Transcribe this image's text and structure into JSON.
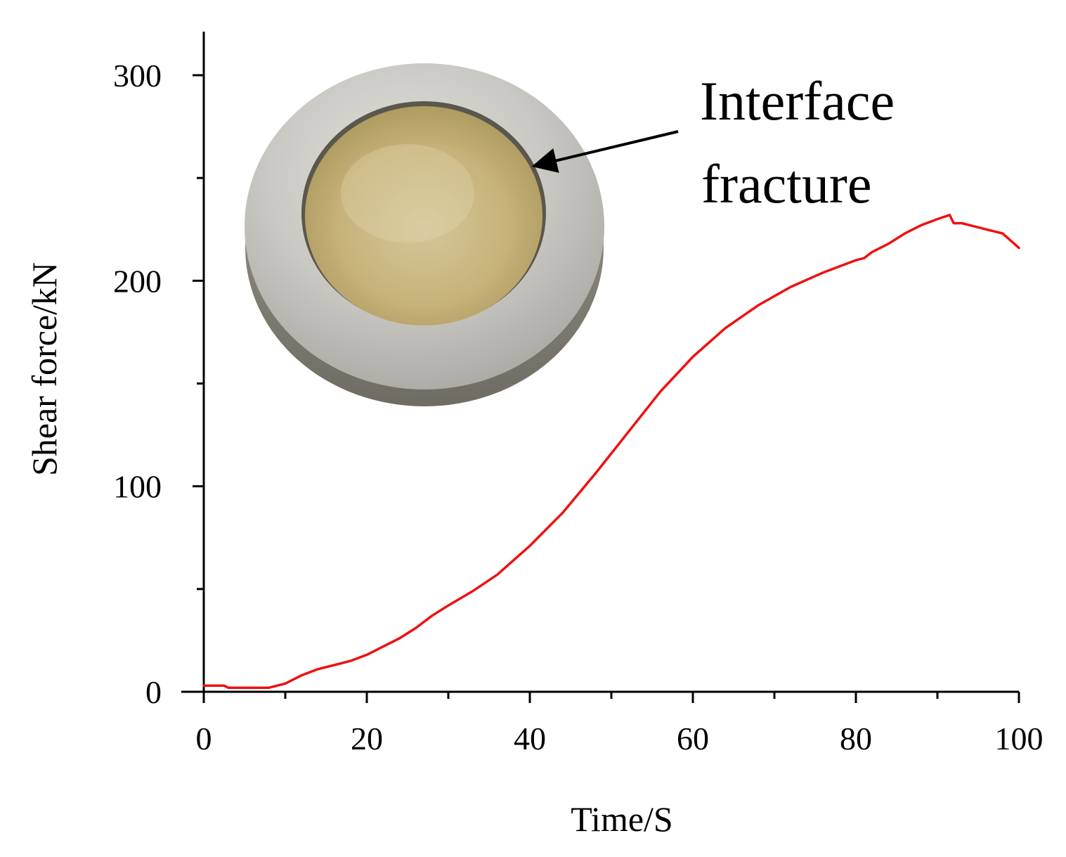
{
  "chart_data": {
    "type": "line",
    "xlabel": "Time/S",
    "ylabel": "Shear force/kN",
    "xlim": [
      0,
      100
    ],
    "ylim": [
      0,
      300
    ],
    "x_ticks": [
      "0",
      "20",
      "40",
      "60",
      "80",
      "100"
    ],
    "y_ticks": [
      "0",
      "100",
      "200",
      "300"
    ],
    "grid": false,
    "legend": "none",
    "annotations": [
      "Interface",
      "fracture"
    ],
    "series": [
      {
        "color": "#ee1111",
        "x": [
          0,
          2.5,
          3,
          5,
          8,
          10,
          12,
          14,
          16,
          18,
          20,
          22,
          24,
          26,
          28,
          30,
          33,
          36,
          40,
          44,
          48,
          52,
          56,
          60,
          64,
          68,
          72,
          76,
          80,
          81,
          82,
          84,
          86,
          88,
          90,
          91.5,
          92,
          93,
          94,
          96,
          98,
          100
        ],
        "y": [
          3,
          3,
          2,
          2,
          2,
          4,
          8,
          11,
          13,
          15,
          18,
          22,
          26,
          31,
          37,
          42,
          49,
          57,
          71,
          87,
          106,
          126,
          146,
          163,
          177,
          188,
          197,
          204,
          210,
          211,
          214,
          218,
          223,
          227,
          230,
          232,
          228,
          228,
          227,
          225,
          223,
          216
        ]
      }
    ]
  }
}
